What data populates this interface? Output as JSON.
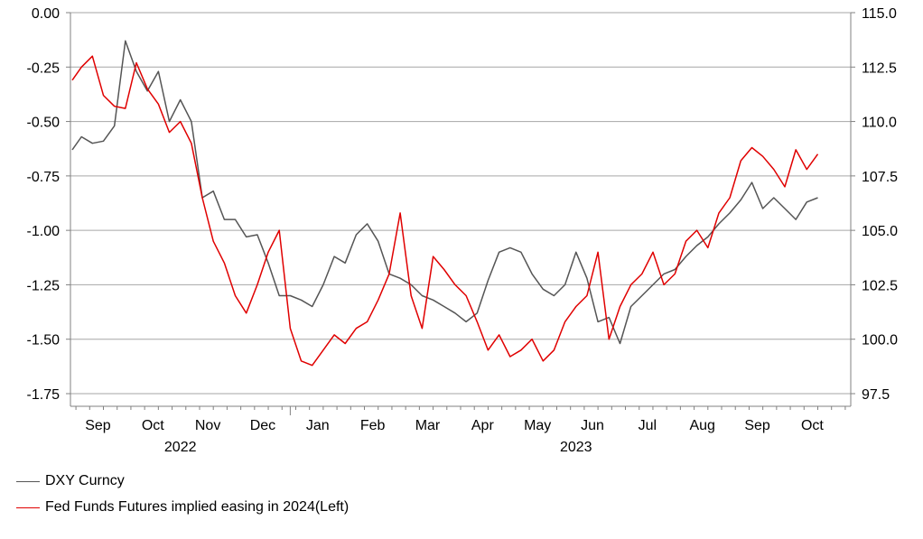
{
  "chart_data": {
    "type": "line",
    "title": "",
    "left_axis": {
      "ylim": [
        -1.75,
        0.0
      ],
      "ticks": [
        0.0,
        -0.25,
        -0.5,
        -0.75,
        -1.0,
        -1.25,
        -1.5,
        -1.75
      ],
      "tick_labels": [
        "0.00",
        "-0.25",
        "-0.50",
        "-0.75",
        "-1.00",
        "-1.25",
        "-1.50",
        "-1.75"
      ]
    },
    "right_axis": {
      "ylim": [
        97.5,
        115.0
      ],
      "ticks": [
        115.0,
        112.5,
        110.0,
        107.5,
        105.0,
        102.5,
        100.0,
        97.5
      ],
      "tick_labels": [
        "115.0",
        "112.5",
        "110.0",
        "107.5",
        "105.0",
        "102.5",
        "100.0",
        "97.5"
      ]
    },
    "x_axis": {
      "months": [
        "Sep",
        "Oct",
        "Nov",
        "Dec",
        "Jan",
        "Feb",
        "Mar",
        "Apr",
        "May",
        "Jun",
        "Jul",
        "Aug",
        "Sep",
        "Oct"
      ],
      "years": [
        "2022",
        "2023"
      ]
    },
    "grid": true,
    "legend_position": "bottom-left",
    "series": [
      {
        "name": "DXY Curncy",
        "axis": "right",
        "color": "#555555",
        "x_month_index": [
          0,
          0.2,
          0.4,
          0.6,
          0.8,
          1.0,
          1.2,
          1.4,
          1.6,
          1.8,
          2.0,
          2.2,
          2.4,
          2.6,
          2.8,
          3.0,
          3.2,
          3.4,
          3.6,
          3.8,
          4.0,
          4.2,
          4.4,
          4.6,
          4.8,
          5.0,
          5.2,
          5.4,
          5.6,
          5.8,
          6.0,
          6.2,
          6.4,
          6.6,
          6.8,
          7.0,
          7.2,
          7.4,
          7.6,
          7.8,
          8.0,
          8.2,
          8.4,
          8.6,
          8.8,
          9.0,
          9.2,
          9.4,
          9.6,
          9.8,
          10.0,
          10.2,
          10.4,
          10.6,
          10.8,
          11.0,
          11.2,
          11.4,
          11.6,
          11.8,
          12.0,
          12.2,
          12.4,
          12.6,
          12.8,
          13.0,
          13.2,
          13.4,
          13.6
        ],
        "values": [
          108.7,
          109.3,
          109.0,
          109.1,
          109.8,
          113.7,
          112.3,
          111.4,
          112.3,
          110.0,
          111.0,
          110.0,
          106.5,
          106.8,
          105.5,
          105.5,
          104.7,
          104.8,
          103.5,
          102.0,
          102.0,
          101.8,
          101.5,
          102.5,
          103.8,
          103.5,
          104.8,
          105.3,
          104.5,
          103.0,
          102.8,
          102.5,
          102.0,
          101.8,
          101.5,
          101.2,
          100.8,
          101.2,
          102.7,
          104.0,
          104.2,
          104.0,
          103.0,
          102.3,
          102.0,
          102.5,
          104.0,
          102.8,
          100.8,
          101.0,
          99.8,
          101.5,
          102.0,
          102.5,
          103.0,
          103.2,
          103.8,
          104.3,
          104.7,
          105.3,
          105.8,
          106.4,
          107.2,
          106.0,
          106.5,
          106.0,
          105.5,
          106.3,
          106.5
        ]
      },
      {
        "name": "Fed Funds Futures implied easing in 2024(Left)",
        "axis": "left",
        "color": "#e00000",
        "x_month_index": [
          0,
          0.2,
          0.4,
          0.6,
          0.8,
          1.0,
          1.2,
          1.4,
          1.6,
          1.8,
          2.0,
          2.2,
          2.4,
          2.6,
          2.8,
          3.0,
          3.2,
          3.4,
          3.6,
          3.8,
          4.0,
          4.2,
          4.4,
          4.6,
          4.8,
          5.0,
          5.2,
          5.4,
          5.6,
          5.8,
          6.0,
          6.2,
          6.4,
          6.6,
          6.8,
          7.0,
          7.2,
          7.4,
          7.6,
          7.8,
          8.0,
          8.2,
          8.4,
          8.6,
          8.8,
          9.0,
          9.2,
          9.4,
          9.6,
          9.8,
          10.0,
          10.2,
          10.4,
          10.6,
          10.8,
          11.0,
          11.2,
          11.4,
          11.6,
          11.8,
          12.0,
          12.2,
          12.4,
          12.6,
          12.8,
          13.0,
          13.2,
          13.4,
          13.6
        ],
        "values": [
          -0.31,
          -0.25,
          -0.2,
          -0.38,
          -0.43,
          -0.44,
          -0.23,
          -0.35,
          -0.42,
          -0.55,
          -0.5,
          -0.6,
          -0.85,
          -1.05,
          -1.15,
          -1.3,
          -1.38,
          -1.25,
          -1.1,
          -1.0,
          -1.45,
          -1.6,
          -1.62,
          -1.55,
          -1.48,
          -1.52,
          -1.45,
          -1.42,
          -1.32,
          -1.2,
          -0.92,
          -1.3,
          -1.45,
          -1.12,
          -1.18,
          -1.25,
          -1.3,
          -1.42,
          -1.55,
          -1.48,
          -1.58,
          -1.55,
          -1.5,
          -1.6,
          -1.55,
          -1.42,
          -1.35,
          -1.3,
          -1.1,
          -1.5,
          -1.35,
          -1.25,
          -1.2,
          -1.1,
          -1.25,
          -1.2,
          -1.05,
          -1.0,
          -1.08,
          -0.92,
          -0.85,
          -0.68,
          -0.62,
          -0.66,
          -0.72,
          -0.8,
          -0.63,
          -0.72,
          -0.65
        ]
      }
    ]
  }
}
